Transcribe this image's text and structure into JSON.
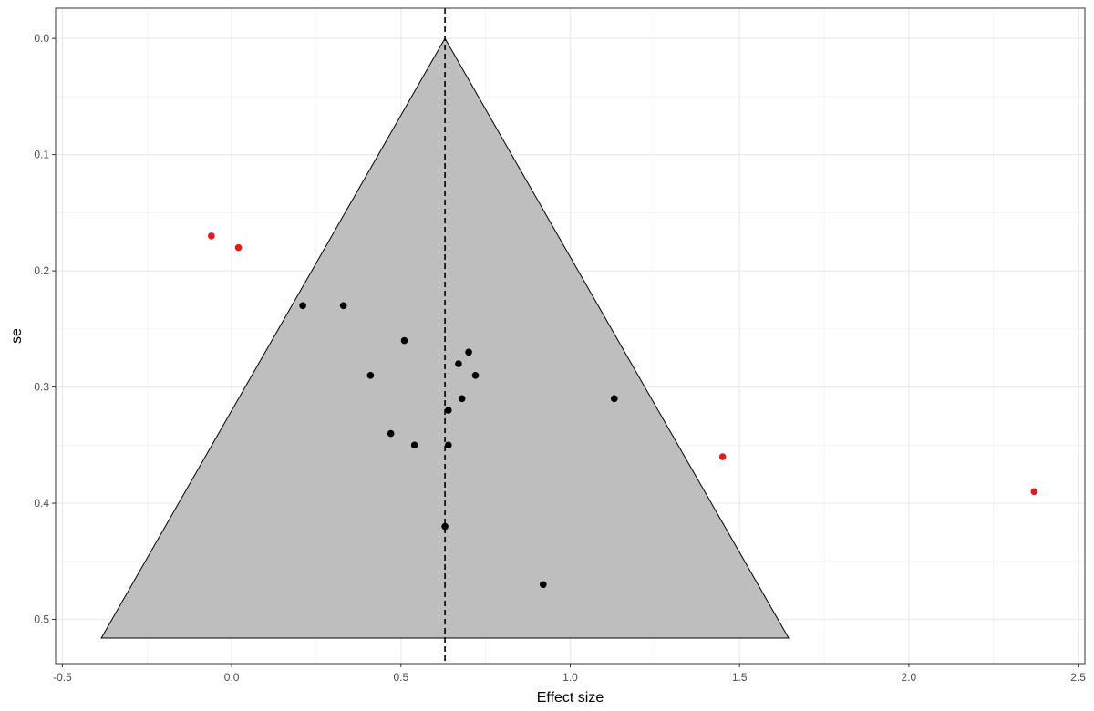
{
  "chart_data": {
    "type": "scatter",
    "subtype": "funnel-plot",
    "title": "",
    "xlabel": "Effect size",
    "ylabel": "se",
    "xlim": [
      -0.52,
      2.52
    ],
    "ylim": [
      -0.026,
      0.538
    ],
    "y_reversed": true,
    "x_ticks": [
      -0.5,
      0.0,
      0.5,
      1.0,
      1.5,
      2.0,
      2.5
    ],
    "x_tick_labels": [
      "-0.5",
      "0.0",
      "0.5",
      "1.0",
      "1.5",
      "2.0",
      "2.5"
    ],
    "y_ticks": [
      0.0,
      0.1,
      0.2,
      0.3,
      0.4,
      0.5
    ],
    "y_tick_labels": [
      "0.0",
      "0.1",
      "0.2",
      "0.3",
      "0.4",
      "0.5"
    ],
    "grid": true,
    "pooled_effect": 0.63,
    "funnel": {
      "apex": [
        0.63,
        0.0
      ],
      "base_left": [
        -0.385,
        0.516
      ],
      "base_right": [
        1.645,
        0.516
      ],
      "fill_color": "#bebebe",
      "line_color": "#000000"
    },
    "series": [
      {
        "color": "#000000",
        "points": [
          [
            0.21,
            0.23
          ],
          [
            0.33,
            0.23
          ],
          [
            0.51,
            0.26
          ],
          [
            0.41,
            0.29
          ],
          [
            0.47,
            0.34
          ],
          [
            0.54,
            0.35
          ],
          [
            0.64,
            0.32
          ],
          [
            0.64,
            0.35
          ],
          [
            0.67,
            0.28
          ],
          [
            0.7,
            0.27
          ],
          [
            0.72,
            0.29
          ],
          [
            0.68,
            0.31
          ],
          [
            1.13,
            0.31
          ],
          [
            0.63,
            0.42
          ],
          [
            0.92,
            0.47
          ]
        ]
      },
      {
        "color": "#e41a1c",
        "points": [
          [
            -0.06,
            0.17
          ],
          [
            0.02,
            0.18
          ],
          [
            1.45,
            0.36
          ],
          [
            2.37,
            0.39
          ]
        ]
      }
    ]
  }
}
